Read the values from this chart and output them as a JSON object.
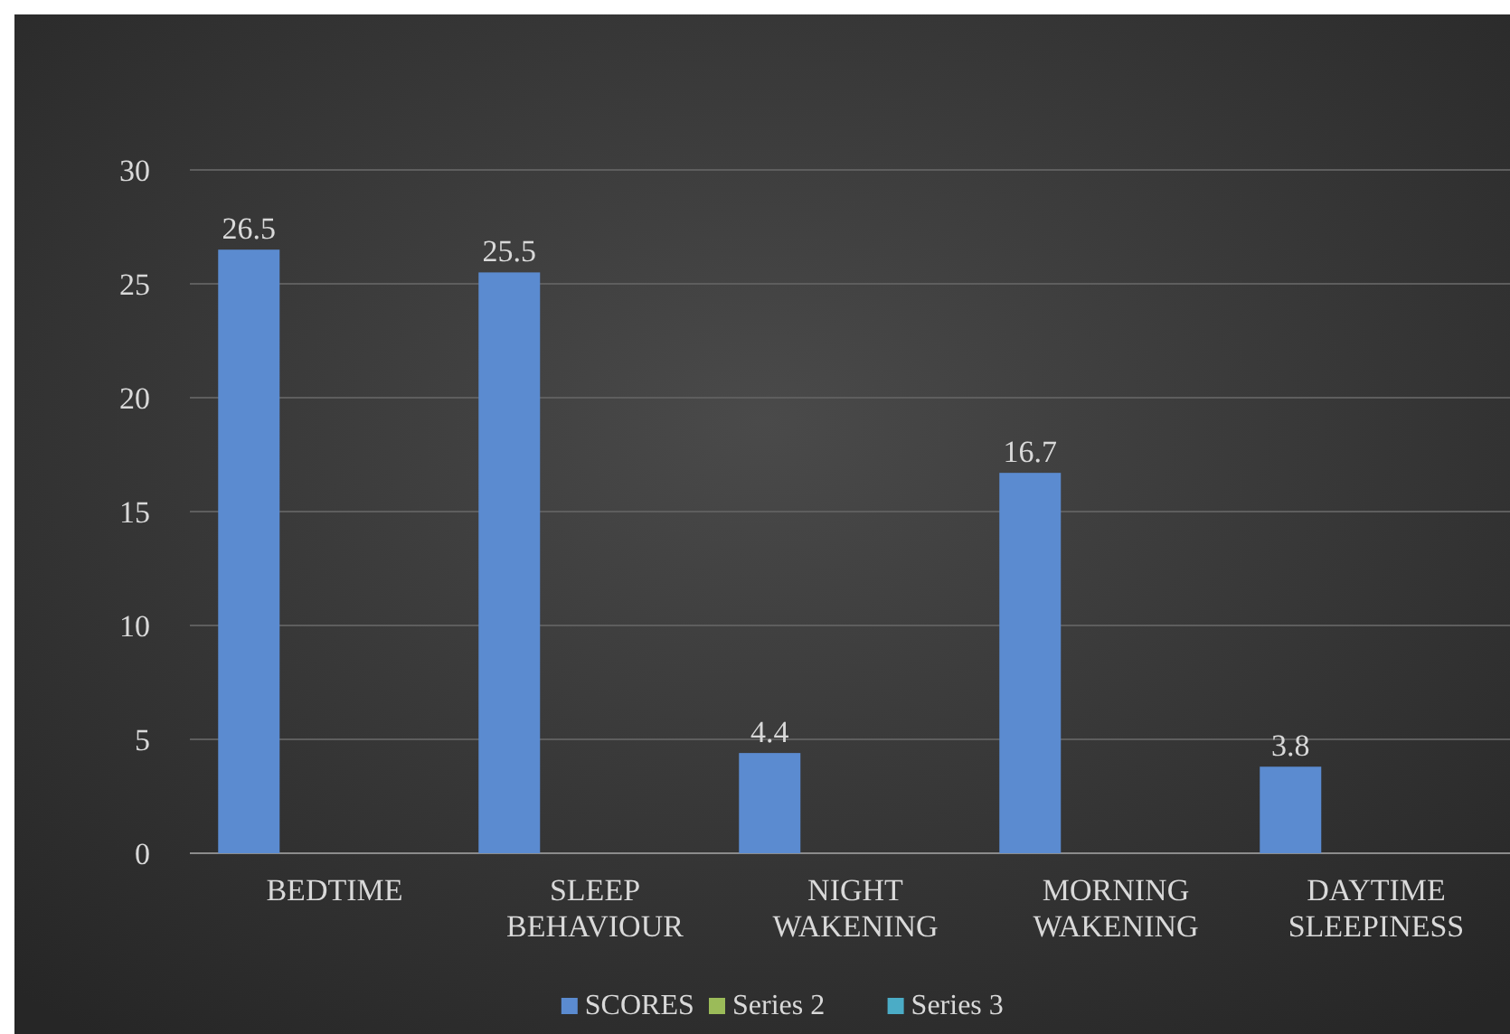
{
  "chart_data": {
    "type": "bar",
    "categories": [
      "BEDTIME",
      "SLEEP BEHAVIOUR",
      "NIGHT WAKENING",
      "MORNING WAKENING",
      "DAYTIME SLEEPINESS"
    ],
    "series": [
      {
        "name": "SCORES",
        "color": "#5b8bd0",
        "values": [
          26.5,
          25.5,
          4.4,
          16.7,
          3.8
        ]
      },
      {
        "name": "Series 2",
        "color": "#9bbb59",
        "values": [
          null,
          null,
          null,
          null,
          null
        ]
      },
      {
        "name": "Series 3",
        "color": "#4bacc6",
        "values": [
          null,
          null,
          null,
          null,
          null
        ]
      }
    ],
    "ylim": [
      0,
      30
    ],
    "yticks": [
      0,
      5,
      10,
      15,
      20,
      25,
      30
    ],
    "grid": "y",
    "legend": "bottom",
    "data_labels": true
  }
}
